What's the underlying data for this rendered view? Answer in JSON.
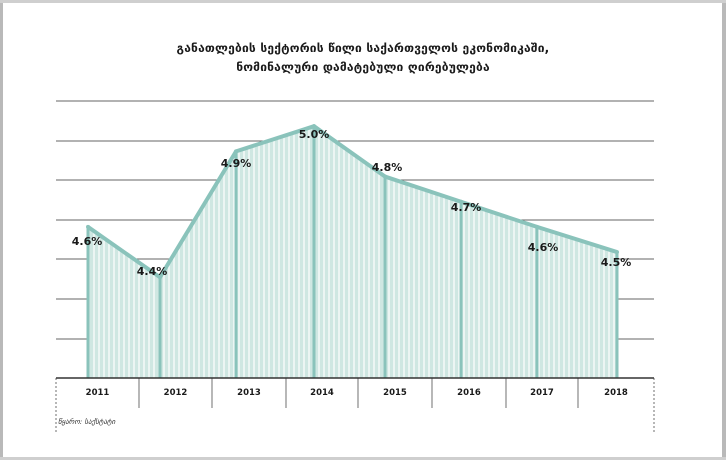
{
  "chart_data": {
    "type": "area",
    "title": [
      "განათლების სექტორის წილი საქართველოს ეკონომიკაში,",
      "ნომინალური დამატებული ღირებულება"
    ],
    "categories": [
      "2011",
      "2012",
      "2013",
      "2014",
      "2015",
      "2016",
      "2017",
      "2018"
    ],
    "values": [
      4.6,
      4.4,
      4.9,
      5.0,
      4.8,
      4.7,
      4.6,
      4.5
    ],
    "value_labels": [
      "4.6%",
      "4.4%",
      "4.9%",
      "5.0%",
      "4.8%",
      "4.7%",
      "4.6%",
      "4.5%"
    ],
    "ylim": [
      4.0,
      5.1
    ],
    "xlabel": "",
    "ylabel": "",
    "grid": true,
    "source": "წყარო: საქსტატი",
    "colors": {
      "fill": "#cfe7e2",
      "stroke": "#8ac3bb",
      "hatch": "#ffffff",
      "grid": "#333333",
      "text": "#1a1a1a"
    }
  }
}
